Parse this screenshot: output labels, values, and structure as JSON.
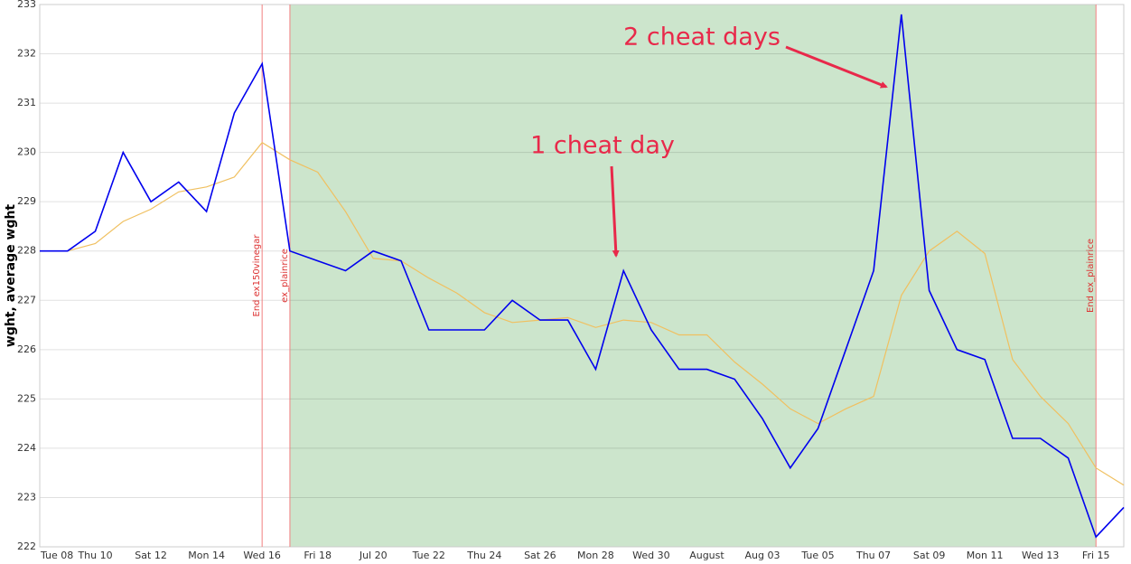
{
  "chart_data": {
    "type": "line",
    "y_label": "wght, average wght",
    "categories": [
      "Tue 08",
      null,
      "Thu 10",
      null,
      "Sat 12",
      null,
      "Mon 14",
      null,
      "Wed 16",
      null,
      "Fri 18",
      null,
      "Jul 20",
      null,
      "Tue 22",
      null,
      "Thu 24",
      null,
      "Sat 26",
      null,
      "Mon 28",
      null,
      "Wed 30",
      null,
      "August",
      null,
      "Aug 03",
      null,
      "Tue 05",
      null,
      "Thu 07",
      null,
      "Sat 09",
      null,
      "Mon 11",
      null,
      "Wed 13",
      null,
      "Fri 15",
      null
    ],
    "series": [
      {
        "name": "wght",
        "color": "#0000ee",
        "values": [
          228,
          228,
          228.4,
          230,
          229,
          229.4,
          228.8,
          230.8,
          231.8,
          228,
          227.8,
          227.6,
          228,
          227.8,
          226.4,
          226.4,
          226.4,
          227,
          226.6,
          226.6,
          225.6,
          227.6,
          226.4,
          225.6,
          225.6,
          225.4,
          224.6,
          223.6,
          224.4,
          226,
          227.6,
          232.8,
          227.2,
          226,
          225.8,
          224.2,
          224.2,
          223.8,
          222.2,
          222.8
        ]
      },
      {
        "name": "average wght",
        "color": "#f0c060",
        "values": [
          228,
          228,
          228.15,
          228.6,
          228.85,
          229.2,
          229.3,
          229.5,
          230.2,
          229.85,
          229.6,
          228.8,
          227.85,
          227.8,
          227.45,
          227.15,
          226.75,
          226.55,
          226.6,
          226.65,
          226.45,
          226.6,
          226.55,
          226.3,
          226.3,
          225.75,
          225.3,
          224.8,
          224.5,
          224.8,
          225.05,
          227.1,
          228,
          228.4,
          227.95,
          225.8,
          225.05,
          224.5,
          223.6,
          223.25
        ]
      }
    ],
    "ylim": [
      222,
      233
    ],
    "yticks": [
      222,
      223,
      224,
      225,
      226,
      227,
      228,
      229,
      230,
      231,
      232,
      233
    ],
    "grid": true,
    "shaded_range": {
      "from_index": 9,
      "to_index": 38,
      "color": "#cce5cc"
    },
    "events": [
      {
        "index": 8,
        "label": "End ex150vinegar"
      },
      {
        "index": 9,
        "label": "ex_plainrice"
      },
      {
        "index": 38,
        "label": "End ex_plainrice"
      }
    ],
    "annotations": [
      {
        "text": "1 cheat day",
        "index": 21
      },
      {
        "text": "2 cheat days",
        "index": 31
      }
    ]
  }
}
